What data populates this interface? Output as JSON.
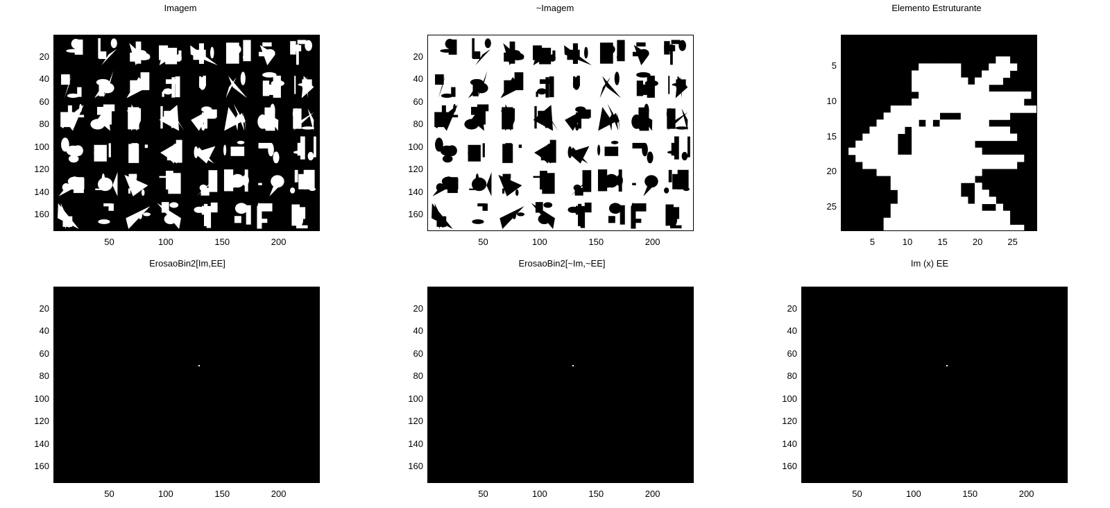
{
  "figure": {
    "panels": [
      {
        "id": "imagem",
        "title": "Imagem",
        "kind": "glyph-image",
        "inverted": false,
        "x_range": [
          0.5,
          236.5
        ],
        "y_range": [
          0.5,
          174.5
        ],
        "x_ticks": [
          50,
          100,
          150,
          200
        ],
        "y_ticks": [
          20,
          40,
          60,
          80,
          100,
          120,
          140,
          160
        ]
      },
      {
        "id": "not-imagem",
        "title": "~Imagem",
        "kind": "glyph-image",
        "inverted": true,
        "x_range": [
          0.5,
          236.5
        ],
        "y_range": [
          0.5,
          174.5
        ],
        "x_ticks": [
          50,
          100,
          150,
          200
        ],
        "y_ticks": [
          20,
          40,
          60,
          80,
          100,
          120,
          140,
          160
        ]
      },
      {
        "id": "elemento-estruturante",
        "title": "Elemento Estruturante",
        "kind": "structuring-element",
        "inverted": false,
        "x_range": [
          0.5,
          28.5
        ],
        "y_range": [
          0.5,
          28.5
        ],
        "x_ticks": [
          5,
          10,
          15,
          20,
          25
        ],
        "y_ticks": [
          5,
          10,
          15,
          20,
          25
        ]
      },
      {
        "id": "erosao-im-ee",
        "title": "ErosaoBin2[Im,EE]",
        "kind": "single-point",
        "inverted": false,
        "x_range": [
          0.5,
          236.5
        ],
        "y_range": [
          0.5,
          174.5
        ],
        "x_ticks": [
          50,
          100,
          150,
          200
        ],
        "y_ticks": [
          20,
          40,
          60,
          80,
          100,
          120,
          140,
          160
        ],
        "point": [
          129,
          70
        ]
      },
      {
        "id": "erosao-notim-notee",
        "title": "ErosaoBin2[~Im,~EE]",
        "kind": "single-point",
        "inverted": false,
        "x_range": [
          0.5,
          236.5
        ],
        "y_range": [
          0.5,
          174.5
        ],
        "x_ticks": [
          50,
          100,
          150,
          200
        ],
        "y_ticks": [
          20,
          40,
          60,
          80,
          100,
          120,
          140,
          160
        ],
        "point": [
          129,
          70
        ]
      },
      {
        "id": "hit-or-miss",
        "title": "Im (x) EE",
        "kind": "single-point",
        "inverted": false,
        "x_range": [
          0.5,
          236.5
        ],
        "y_range": [
          0.5,
          174.5
        ],
        "x_ticks": [
          50,
          100,
          150,
          200
        ],
        "y_ticks": [
          20,
          40,
          60,
          80,
          100,
          120,
          140,
          160
        ],
        "point": [
          129,
          70
        ]
      }
    ]
  }
}
